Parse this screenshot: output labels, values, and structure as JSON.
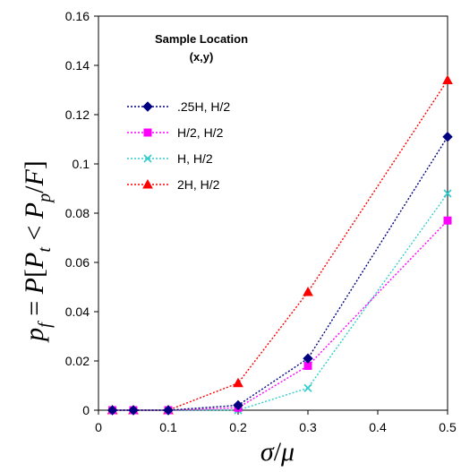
{
  "chart_data": {
    "type": "line",
    "title": "",
    "xlabel": "σ/μ",
    "ylabel": "p_f = P[P_t < P_p/F]",
    "ylabel_parts": {
      "p": "p",
      "p_sub": "f",
      "eq": " = ",
      "P1": "P",
      "lb": "[",
      "P2": "P",
      "t_sub": "t",
      "lt": " < ",
      "P3": "P",
      "p_sub2": "p",
      "slash": "/",
      "F": "F",
      "rb": "]"
    },
    "xlabel_parts": {
      "sigma": "σ",
      "slash": "/",
      "mu": "μ"
    },
    "xlim": [
      0,
      0.5
    ],
    "ylim": [
      0,
      0.16
    ],
    "x_ticks": [
      "0",
      "0.1",
      "0.2",
      "0.3",
      "0.4",
      "0.5"
    ],
    "y_ticks": [
      "0",
      "0.02",
      "0.04",
      "0.06",
      "0.08",
      "0.1",
      "0.12",
      "0.14",
      "0.16"
    ],
    "grid": false,
    "legend": {
      "title_line1": "Sample Location",
      "title_line2": "(x,y)",
      "placement": "top-left"
    },
    "x": [
      0.02,
      0.05,
      0.1,
      0.2,
      0.3,
      0.5
    ],
    "series": [
      {
        "name": ".25H, H/2",
        "color": "#000080",
        "marker": "diamond",
        "values": [
          0,
          0,
          0,
          0.002,
          0.021,
          0.111
        ]
      },
      {
        "name": "H/2, H/2",
        "color": "#ff00ff",
        "marker": "square",
        "values": [
          0,
          0,
          0,
          0.001,
          0.018,
          0.077
        ]
      },
      {
        "name": "H, H/2",
        "color": "#33cccc",
        "marker": "x",
        "values": [
          0,
          0,
          0,
          0,
          0.009,
          0.088
        ]
      },
      {
        "name": "2H, H/2",
        "color": "#ff0000",
        "marker": "triangle",
        "values": [
          0,
          0,
          0,
          0.011,
          0.048,
          0.134
        ]
      }
    ]
  }
}
